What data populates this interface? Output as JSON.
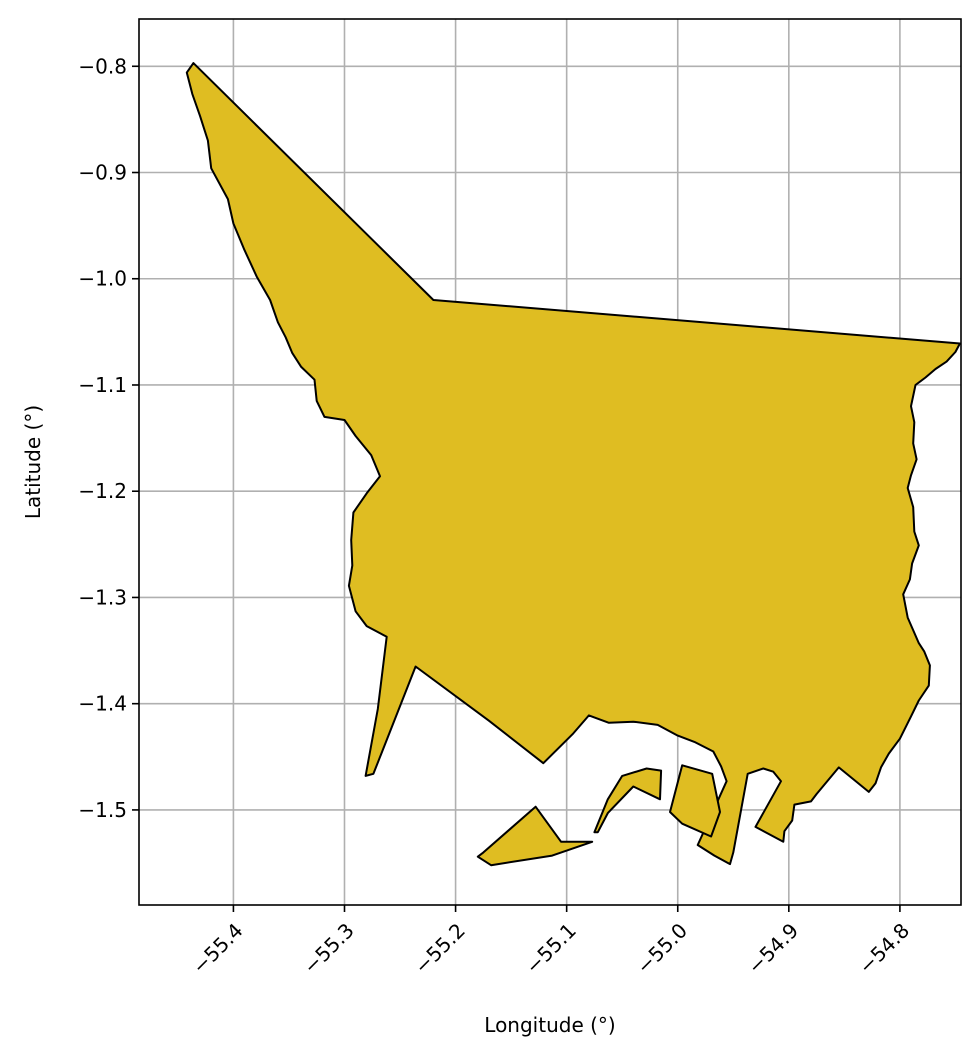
{
  "chart_data": {
    "type": "map",
    "xlabel": "Longitude (°)",
    "ylabel": "Latitude (°)",
    "xlim": [
      -55.485,
      -54.745
    ],
    "ylim": [
      -1.5895,
      -0.7555
    ],
    "grid": true,
    "xticks": [
      -55.4,
      -55.3,
      -55.2,
      -55.1,
      -55.0,
      -54.9,
      -54.8
    ],
    "xtick_labels": [
      "−55.4",
      "−55.3",
      "−55.2",
      "−55.1",
      "−55.0",
      "−54.9",
      "−54.8"
    ],
    "yticks": [
      -0.8,
      -0.9,
      -1.0,
      -1.1,
      -1.2,
      -1.3,
      -1.4,
      -1.5
    ],
    "ytick_labels": [
      "−0.8",
      "−0.9",
      "−1.0",
      "−1.1",
      "−1.2",
      "−1.3",
      "−1.4",
      "−1.5"
    ],
    "region": {
      "fill": "#dfbd22",
      "stroke": "#000000",
      "boundary": [
        [
          -55.436,
          -0.797
        ],
        [
          -55.22,
          -1.02
        ],
        [
          -54.746,
          -1.061
        ],
        [
          -54.75,
          -1.069
        ],
        [
          -54.758,
          -1.078
        ],
        [
          -54.768,
          -1.085
        ],
        [
          -54.777,
          -1.093
        ],
        [
          -54.786,
          -1.1
        ],
        [
          -54.79,
          -1.12
        ],
        [
          -54.787,
          -1.135
        ],
        [
          -54.788,
          -1.155
        ],
        [
          -54.785,
          -1.17
        ],
        [
          -54.79,
          -1.185
        ],
        [
          -54.793,
          -1.197
        ],
        [
          -54.788,
          -1.215
        ],
        [
          -54.787,
          -1.238
        ],
        [
          -54.783,
          -1.251
        ],
        [
          -54.789,
          -1.268
        ],
        [
          -54.791,
          -1.283
        ],
        [
          -54.797,
          -1.297
        ],
        [
          -54.793,
          -1.319
        ],
        [
          -54.783,
          -1.343
        ],
        [
          -54.778,
          -1.351
        ],
        [
          -54.773,
          -1.364
        ],
        [
          -54.774,
          -1.383
        ],
        [
          -54.783,
          -1.397
        ],
        [
          -54.79,
          -1.412
        ],
        [
          -54.8,
          -1.433
        ],
        [
          -54.81,
          -1.447
        ],
        [
          -54.817,
          -1.46
        ],
        [
          -54.822,
          -1.475
        ],
        [
          -54.828,
          -1.483
        ],
        [
          -54.855,
          -1.46
        ],
        [
          -54.875,
          -1.485
        ],
        [
          -54.88,
          -1.492
        ],
        [
          -54.895,
          -1.495
        ],
        [
          -54.897,
          -1.51
        ],
        [
          -54.904,
          -1.52
        ],
        [
          -54.905,
          -1.53
        ],
        [
          -54.93,
          -1.516
        ],
        [
          -54.907,
          -1.473
        ],
        [
          -54.914,
          -1.464
        ],
        [
          -54.923,
          -1.461
        ],
        [
          -54.937,
          -1.466
        ],
        [
          -54.95,
          -1.54
        ],
        [
          -54.953,
          -1.551
        ],
        [
          -54.967,
          -1.543
        ],
        [
          -54.982,
          -1.533
        ],
        [
          -54.969,
          -1.503
        ],
        [
          -54.956,
          -1.473
        ],
        [
          -54.961,
          -1.459
        ],
        [
          -54.968,
          -1.445
        ],
        [
          -54.985,
          -1.436
        ],
        [
          -55.0,
          -1.43
        ],
        [
          -55.018,
          -1.42
        ],
        [
          -55.04,
          -1.417
        ],
        [
          -55.062,
          -1.418
        ],
        [
          -55.08,
          -1.411
        ],
        [
          -55.094,
          -1.428
        ],
        [
          -55.121,
          -1.456
        ],
        [
          -55.17,
          -1.416
        ],
        [
          -55.236,
          -1.365
        ],
        [
          -55.274,
          -1.466
        ],
        [
          -55.281,
          -1.468
        ],
        [
          -55.27,
          -1.405
        ],
        [
          -55.262,
          -1.337
        ],
        [
          -55.28,
          -1.327
        ],
        [
          -55.29,
          -1.313
        ],
        [
          -55.296,
          -1.289
        ],
        [
          -55.293,
          -1.27
        ],
        [
          -55.294,
          -1.246
        ],
        [
          -55.292,
          -1.22
        ],
        [
          -55.28,
          -1.202
        ],
        [
          -55.268,
          -1.186
        ],
        [
          -55.276,
          -1.166
        ],
        [
          -55.29,
          -1.148
        ],
        [
          -55.3,
          -1.133
        ],
        [
          -55.318,
          -1.13
        ],
        [
          -55.325,
          -1.115
        ],
        [
          -55.327,
          -1.095
        ],
        [
          -55.339,
          -1.083
        ],
        [
          -55.347,
          -1.07
        ],
        [
          -55.353,
          -1.055
        ],
        [
          -55.36,
          -1.041
        ],
        [
          -55.367,
          -1.02
        ],
        [
          -55.379,
          -0.998
        ],
        [
          -55.39,
          -0.973
        ],
        [
          -55.4,
          -0.948
        ],
        [
          -55.405,
          -0.925
        ],
        [
          -55.42,
          -0.896
        ],
        [
          -55.423,
          -0.87
        ],
        [
          -55.43,
          -0.847
        ],
        [
          -55.437,
          -0.826
        ],
        [
          -55.442,
          -0.806
        ]
      ],
      "islands": [
        [
          [
            -55.175,
            -1.54
          ],
          [
            -55.128,
            -1.497
          ],
          [
            -55.105,
            -1.53
          ],
          [
            -55.077,
            -1.53
          ],
          [
            -55.113,
            -1.543
          ],
          [
            -55.168,
            -1.552
          ],
          [
            -55.18,
            -1.544
          ]
        ],
        [
          [
            -55.075,
            -1.521
          ],
          [
            -55.063,
            -1.49
          ],
          [
            -55.05,
            -1.468
          ],
          [
            -55.028,
            -1.461
          ],
          [
            -55.015,
            -1.463
          ],
          [
            -55.016,
            -1.49
          ],
          [
            -55.04,
            -1.478
          ],
          [
            -55.063,
            -1.503
          ],
          [
            -55.072,
            -1.521
          ]
        ],
        [
          [
            -55.007,
            -1.502
          ],
          [
            -54.996,
            -1.458
          ],
          [
            -54.969,
            -1.466
          ],
          [
            -54.962,
            -1.502
          ],
          [
            -54.97,
            -1.525
          ],
          [
            -54.996,
            -1.513
          ]
        ]
      ]
    }
  }
}
